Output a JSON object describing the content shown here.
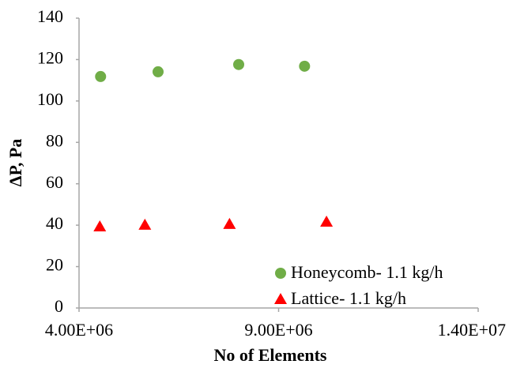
{
  "chart_data": {
    "type": "scatter",
    "xlabel": "No of Elements",
    "ylabel": "ΔP, Pa",
    "xlim": [
      4000000,
      14000000
    ],
    "xticks": [
      {
        "value": 4000000,
        "label": "4.00E+06"
      },
      {
        "value": 9000000,
        "label": "9.00E+06"
      },
      {
        "value": 14000000,
        "label": "1.40E+07"
      }
    ],
    "ylim": [
      0,
      140
    ],
    "yticks": [
      0,
      20,
      40,
      60,
      80,
      100,
      120,
      140
    ],
    "grid": false,
    "legend": "lower right",
    "series": [
      {
        "name": "Honeycomb- 1.1 kg/h",
        "color": "#70ad47",
        "marker": "circle",
        "x": [
          4540000,
          5980000,
          8000000,
          9650000
        ],
        "values": [
          111.8,
          114.1,
          117.6,
          116.8
        ]
      },
      {
        "name": "Lattice- 1.1 kg/h",
        "color": "#ff0000",
        "marker": "triangle",
        "x": [
          4520000,
          5650000,
          7770000,
          10200000
        ],
        "values": [
          39.3,
          40.1,
          40.5,
          41.6
        ]
      }
    ]
  }
}
